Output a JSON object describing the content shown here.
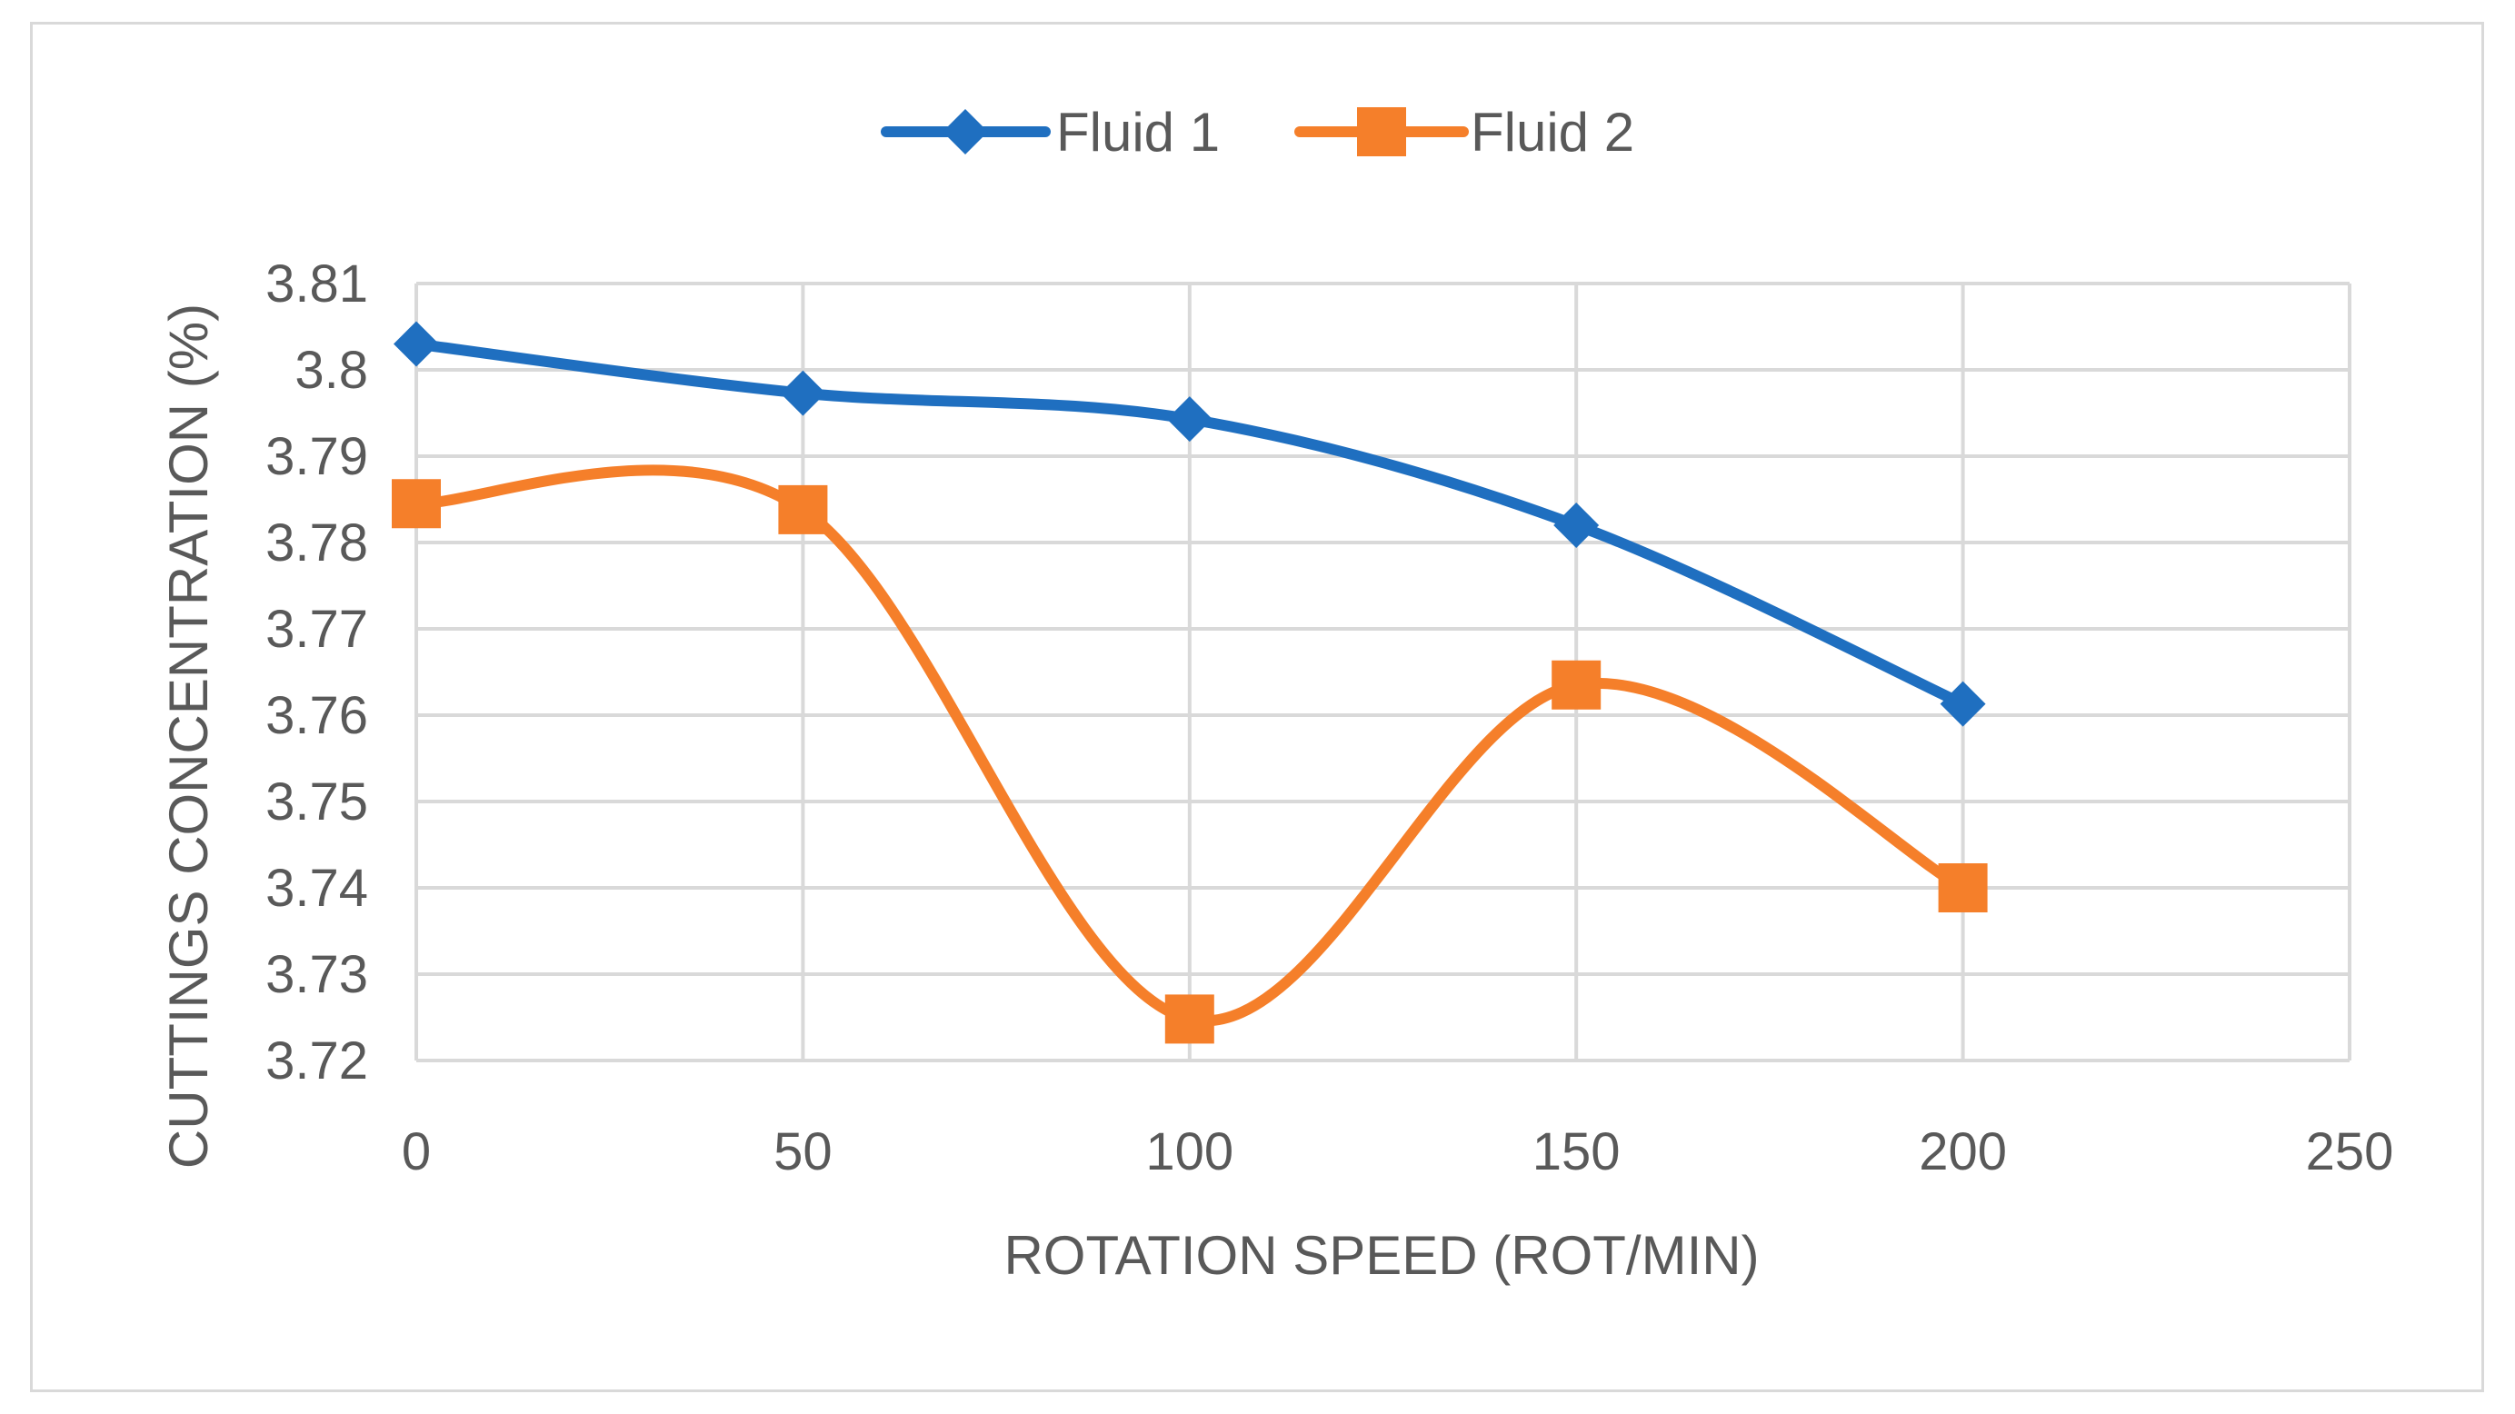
{
  "chart_data": {
    "type": "line",
    "smooth": true,
    "title": "",
    "xlabel": "ROTATION SPEED (ROT/MIN)",
    "ylabel": "CUTTINGS CONCENTRATION (%)",
    "xlim": [
      0,
      250
    ],
    "ylim": [
      3.72,
      3.81
    ],
    "x_ticks": [
      0,
      50,
      100,
      150,
      200,
      250
    ],
    "x_tick_labels": [
      "0",
      "50",
      "100",
      "150",
      "200",
      "250"
    ],
    "y_ticks": [
      3.72,
      3.73,
      3.74,
      3.75,
      3.76,
      3.77,
      3.78,
      3.79,
      3.8,
      3.81
    ],
    "y_tick_labels": [
      "3.72",
      "3.73",
      "3.74",
      "3.75",
      "3.76",
      "3.77",
      "3.78",
      "3.79",
      "3.8",
      "3.81"
    ],
    "grid": true,
    "legend_position": "top-center",
    "series": [
      {
        "name": "Fluid 1",
        "color": "#1f6fc0",
        "marker": "diamond",
        "x": [
          0,
          50,
          100,
          150,
          200
        ],
        "values": [
          3.803,
          3.7973,
          3.7943,
          3.782,
          3.7613
        ]
      },
      {
        "name": "Fluid 2",
        "color": "#f57f2a",
        "marker": "square",
        "x": [
          0,
          50,
          100,
          150,
          200
        ],
        "values": [
          3.7845,
          3.7838,
          3.7248,
          3.7635,
          3.74
        ]
      }
    ]
  }
}
